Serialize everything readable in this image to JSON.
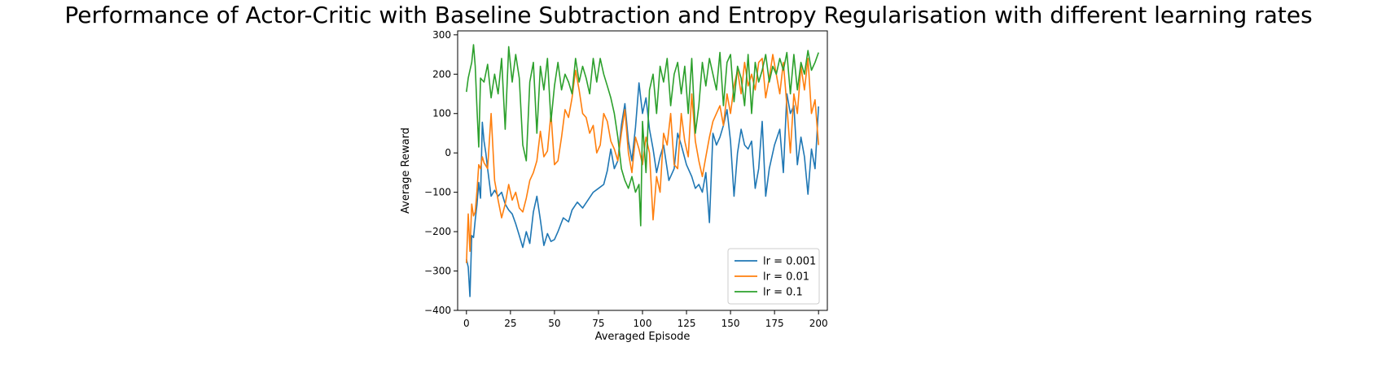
{
  "chart_data": {
    "type": "line",
    "title": "Performance of Actor-Critic with Baseline Subtraction and Entropy Regularisation with different learning rates",
    "xlabel": "Averaged Episode",
    "ylabel": "Average Reward",
    "xlim": [
      -5,
      205
    ],
    "ylim": [
      -400,
      310
    ],
    "xticks": [
      0,
      25,
      50,
      75,
      100,
      125,
      150,
      175,
      200
    ],
    "yticks": [
      -400,
      -300,
      -200,
      -100,
      0,
      100,
      200,
      300
    ],
    "legend": "bottom-right",
    "grid": false,
    "series": [
      {
        "name": "lr = 0.001",
        "color": "#1f77b4",
        "keypoints": [
          [
            0,
            -270
          ],
          [
            1,
            -290
          ],
          [
            2,
            -365
          ],
          [
            3,
            -210
          ],
          [
            4,
            -215
          ],
          [
            5,
            -170
          ],
          [
            6,
            -130
          ],
          [
            7,
            -75
          ],
          [
            8,
            -115
          ],
          [
            9,
            78
          ],
          [
            10,
            30
          ],
          [
            11,
            0
          ],
          [
            12,
            -40
          ],
          [
            14,
            -110
          ],
          [
            16,
            -95
          ],
          [
            18,
            -110
          ],
          [
            20,
            -100
          ],
          [
            22,
            -130
          ],
          [
            24,
            -145
          ],
          [
            26,
            -155
          ],
          [
            28,
            -180
          ],
          [
            30,
            -210
          ],
          [
            32,
            -240
          ],
          [
            34,
            -200
          ],
          [
            36,
            -230
          ],
          [
            38,
            -150
          ],
          [
            40,
            -110
          ],
          [
            42,
            -170
          ],
          [
            44,
            -235
          ],
          [
            46,
            -205
          ],
          [
            48,
            -225
          ],
          [
            50,
            -220
          ],
          [
            52,
            -200
          ],
          [
            55,
            -165
          ],
          [
            58,
            -175
          ],
          [
            60,
            -145
          ],
          [
            63,
            -125
          ],
          [
            66,
            -140
          ],
          [
            69,
            -120
          ],
          [
            72,
            -100
          ],
          [
            75,
            -90
          ],
          [
            78,
            -80
          ],
          [
            80,
            -45
          ],
          [
            82,
            10
          ],
          [
            84,
            -40
          ],
          [
            86,
            -20
          ],
          [
            88,
            70
          ],
          [
            90,
            125
          ],
          [
            92,
            30
          ],
          [
            94,
            -20
          ],
          [
            96,
            65
          ],
          [
            98,
            178
          ],
          [
            100,
            100
          ],
          [
            102,
            140
          ],
          [
            104,
            60
          ],
          [
            106,
            10
          ],
          [
            108,
            -50
          ],
          [
            110,
            -10
          ],
          [
            112,
            20
          ],
          [
            115,
            -70
          ],
          [
            118,
            -40
          ],
          [
            120,
            50
          ],
          [
            122,
            20
          ],
          [
            125,
            -30
          ],
          [
            128,
            -60
          ],
          [
            130,
            -90
          ],
          [
            132,
            -80
          ],
          [
            134,
            -100
          ],
          [
            136,
            -50
          ],
          [
            138,
            -177
          ],
          [
            140,
            50
          ],
          [
            142,
            20
          ],
          [
            144,
            40
          ],
          [
            146,
            70
          ],
          [
            148,
            110
          ],
          [
            150,
            30
          ],
          [
            152,
            -110
          ],
          [
            154,
            0
          ],
          [
            156,
            60
          ],
          [
            158,
            20
          ],
          [
            160,
            10
          ],
          [
            162,
            30
          ],
          [
            164,
            -90
          ],
          [
            166,
            -40
          ],
          [
            168,
            80
          ],
          [
            170,
            -110
          ],
          [
            172,
            -40
          ],
          [
            175,
            20
          ],
          [
            178,
            60
          ],
          [
            180,
            -50
          ],
          [
            182,
            150
          ],
          [
            184,
            100
          ],
          [
            186,
            120
          ],
          [
            188,
            -30
          ],
          [
            190,
            40
          ],
          [
            192,
            -10
          ],
          [
            194,
            -105
          ],
          [
            196,
            10
          ],
          [
            198,
            -40
          ],
          [
            200,
            118
          ]
        ]
      },
      {
        "name": "lr = 0.01",
        "color": "#ff7f0e",
        "keypoints": [
          [
            0,
            -280
          ],
          [
            1,
            -155
          ],
          [
            2,
            -250
          ],
          [
            3,
            -130
          ],
          [
            4,
            -160
          ],
          [
            5,
            -150
          ],
          [
            6,
            -95
          ],
          [
            7,
            -30
          ],
          [
            8,
            -40
          ],
          [
            9,
            -10
          ],
          [
            10,
            -25
          ],
          [
            12,
            -40
          ],
          [
            14,
            100
          ],
          [
            16,
            -70
          ],
          [
            18,
            -120
          ],
          [
            20,
            -165
          ],
          [
            22,
            -130
          ],
          [
            24,
            -80
          ],
          [
            26,
            -120
          ],
          [
            28,
            -100
          ],
          [
            30,
            -140
          ],
          [
            32,
            -150
          ],
          [
            34,
            -115
          ],
          [
            36,
            -70
          ],
          [
            38,
            -50
          ],
          [
            40,
            -20
          ],
          [
            42,
            55
          ],
          [
            44,
            -10
          ],
          [
            46,
            5
          ],
          [
            48,
            100
          ],
          [
            50,
            -30
          ],
          [
            52,
            -20
          ],
          [
            54,
            40
          ],
          [
            56,
            110
          ],
          [
            58,
            90
          ],
          [
            60,
            140
          ],
          [
            62,
            210
          ],
          [
            64,
            160
          ],
          [
            66,
            100
          ],
          [
            68,
            90
          ],
          [
            70,
            50
          ],
          [
            72,
            70
          ],
          [
            74,
            0
          ],
          [
            76,
            20
          ],
          [
            78,
            100
          ],
          [
            80,
            80
          ],
          [
            82,
            30
          ],
          [
            84,
            10
          ],
          [
            86,
            -20
          ],
          [
            88,
            50
          ],
          [
            90,
            110
          ],
          [
            92,
            0
          ],
          [
            94,
            -50
          ],
          [
            96,
            40
          ],
          [
            98,
            10
          ],
          [
            100,
            -30
          ],
          [
            102,
            40
          ],
          [
            104,
            0
          ],
          [
            106,
            -170
          ],
          [
            108,
            -60
          ],
          [
            110,
            -100
          ],
          [
            112,
            50
          ],
          [
            114,
            20
          ],
          [
            116,
            100
          ],
          [
            118,
            -30
          ],
          [
            120,
            -40
          ],
          [
            122,
            100
          ],
          [
            124,
            30
          ],
          [
            126,
            -10
          ],
          [
            128,
            150
          ],
          [
            130,
            30
          ],
          [
            132,
            -20
          ],
          [
            134,
            -60
          ],
          [
            136,
            -10
          ],
          [
            138,
            40
          ],
          [
            140,
            80
          ],
          [
            142,
            100
          ],
          [
            144,
            120
          ],
          [
            146,
            70
          ],
          [
            148,
            150
          ],
          [
            150,
            100
          ],
          [
            152,
            170
          ],
          [
            154,
            210
          ],
          [
            156,
            150
          ],
          [
            158,
            230
          ],
          [
            160,
            170
          ],
          [
            162,
            200
          ],
          [
            164,
            160
          ],
          [
            166,
            230
          ],
          [
            168,
            240
          ],
          [
            170,
            140
          ],
          [
            172,
            190
          ],
          [
            174,
            250
          ],
          [
            176,
            200
          ],
          [
            178,
            150
          ],
          [
            180,
            230
          ],
          [
            182,
            120
          ],
          [
            184,
            0
          ],
          [
            186,
            150
          ],
          [
            188,
            100
          ],
          [
            190,
            220
          ],
          [
            192,
            160
          ],
          [
            194,
            240
          ],
          [
            196,
            100
          ],
          [
            198,
            135
          ],
          [
            200,
            20
          ]
        ]
      },
      {
        "name": "lr = 0.1",
        "color": "#2ca02c",
        "keypoints": [
          [
            0,
            155
          ],
          [
            1,
            190
          ],
          [
            2,
            210
          ],
          [
            3,
            230
          ],
          [
            4,
            275
          ],
          [
            5,
            220
          ],
          [
            6,
            110
          ],
          [
            7,
            15
          ],
          [
            8,
            190
          ],
          [
            10,
            180
          ],
          [
            12,
            225
          ],
          [
            14,
            140
          ],
          [
            16,
            200
          ],
          [
            18,
            150
          ],
          [
            20,
            240
          ],
          [
            22,
            60
          ],
          [
            24,
            270
          ],
          [
            26,
            180
          ],
          [
            28,
            250
          ],
          [
            30,
            190
          ],
          [
            32,
            20
          ],
          [
            34,
            -20
          ],
          [
            36,
            180
          ],
          [
            38,
            230
          ],
          [
            40,
            50
          ],
          [
            42,
            220
          ],
          [
            44,
            160
          ],
          [
            46,
            240
          ],
          [
            48,
            80
          ],
          [
            50,
            170
          ],
          [
            52,
            230
          ],
          [
            54,
            160
          ],
          [
            56,
            200
          ],
          [
            58,
            180
          ],
          [
            60,
            150
          ],
          [
            62,
            240
          ],
          [
            64,
            180
          ],
          [
            66,
            220
          ],
          [
            68,
            190
          ],
          [
            70,
            150
          ],
          [
            72,
            240
          ],
          [
            74,
            180
          ],
          [
            76,
            240
          ],
          [
            78,
            200
          ],
          [
            80,
            170
          ],
          [
            82,
            140
          ],
          [
            84,
            100
          ],
          [
            86,
            40
          ],
          [
            88,
            -40
          ],
          [
            90,
            -70
          ],
          [
            92,
            -90
          ],
          [
            94,
            -60
          ],
          [
            96,
            -100
          ],
          [
            98,
            -80
          ],
          [
            99,
            -185
          ],
          [
            100,
            80
          ],
          [
            102,
            -50
          ],
          [
            104,
            160
          ],
          [
            106,
            200
          ],
          [
            108,
            100
          ],
          [
            110,
            220
          ],
          [
            112,
            180
          ],
          [
            114,
            240
          ],
          [
            116,
            120
          ],
          [
            118,
            200
          ],
          [
            120,
            230
          ],
          [
            122,
            150
          ],
          [
            124,
            220
          ],
          [
            126,
            100
          ],
          [
            128,
            240
          ],
          [
            130,
            50
          ],
          [
            132,
            120
          ],
          [
            134,
            230
          ],
          [
            136,
            170
          ],
          [
            138,
            240
          ],
          [
            140,
            200
          ],
          [
            142,
            160
          ],
          [
            144,
            255
          ],
          [
            146,
            120
          ],
          [
            148,
            230
          ],
          [
            150,
            250
          ],
          [
            152,
            130
          ],
          [
            154,
            220
          ],
          [
            156,
            190
          ],
          [
            158,
            120
          ],
          [
            160,
            250
          ],
          [
            162,
            100
          ],
          [
            164,
            230
          ],
          [
            166,
            180
          ],
          [
            168,
            210
          ],
          [
            170,
            250
          ],
          [
            172,
            180
          ],
          [
            174,
            220
          ],
          [
            176,
            200
          ],
          [
            178,
            240
          ],
          [
            180,
            210
          ],
          [
            182,
            255
          ],
          [
            184,
            150
          ],
          [
            186,
            250
          ],
          [
            188,
            160
          ],
          [
            190,
            230
          ],
          [
            192,
            200
          ],
          [
            194,
            260
          ],
          [
            196,
            210
          ],
          [
            198,
            230
          ],
          [
            200,
            255
          ]
        ]
      }
    ]
  }
}
